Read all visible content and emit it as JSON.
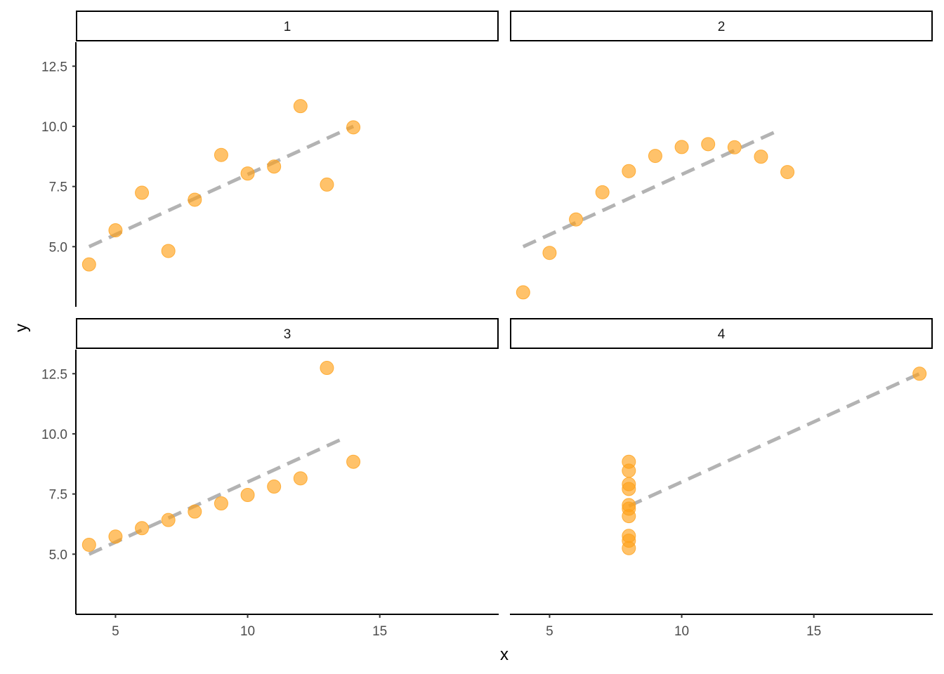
{
  "chart_data": {
    "type": "scatter",
    "facet_layout": "2x2",
    "xlabel": "x",
    "ylabel": "y",
    "xlim": [
      3.5,
      19.5
    ],
    "ylim": [
      2.5,
      13.5
    ],
    "x_ticks": [
      5,
      10,
      15
    ],
    "y_ticks": [
      5.0,
      7.5,
      10.0,
      12.5
    ],
    "x_tick_labels": [
      "5",
      "10",
      "15"
    ],
    "y_tick_labels": [
      "5.0",
      "7.5",
      "10.0",
      "12.5"
    ],
    "grid": false,
    "point_color": "#FFA11A",
    "line_color": "#B3B3B3",
    "line_style": "dashed",
    "trend_line": {
      "intercept": 3.0,
      "slope": 0.5
    },
    "panels": [
      {
        "label": "1",
        "points": [
          {
            "x": 4,
            "y": 4.26
          },
          {
            "x": 5,
            "y": 5.68
          },
          {
            "x": 6,
            "y": 7.24
          },
          {
            "x": 7,
            "y": 4.82
          },
          {
            "x": 8,
            "y": 6.95
          },
          {
            "x": 9,
            "y": 8.81
          },
          {
            "x": 10,
            "y": 8.04
          },
          {
            "x": 11,
            "y": 8.33
          },
          {
            "x": 12,
            "y": 10.84
          },
          {
            "x": 13,
            "y": 7.58
          },
          {
            "x": 14,
            "y": 9.96
          }
        ],
        "line_x": [
          4,
          14
        ]
      },
      {
        "label": "2",
        "points": [
          {
            "x": 4,
            "y": 3.1
          },
          {
            "x": 5,
            "y": 4.74
          },
          {
            "x": 6,
            "y": 6.13
          },
          {
            "x": 7,
            "y": 7.26
          },
          {
            "x": 8,
            "y": 8.14
          },
          {
            "x": 9,
            "y": 8.77
          },
          {
            "x": 10,
            "y": 9.14
          },
          {
            "x": 11,
            "y": 9.26
          },
          {
            "x": 12,
            "y": 9.13
          },
          {
            "x": 13,
            "y": 8.74
          },
          {
            "x": 14,
            "y": 8.1
          }
        ],
        "line_x": [
          4,
          13.6
        ]
      },
      {
        "label": "3",
        "points": [
          {
            "x": 4,
            "y": 5.39
          },
          {
            "x": 5,
            "y": 5.73
          },
          {
            "x": 6,
            "y": 6.08
          },
          {
            "x": 7,
            "y": 6.42
          },
          {
            "x": 8,
            "y": 6.77
          },
          {
            "x": 9,
            "y": 7.11
          },
          {
            "x": 10,
            "y": 7.46
          },
          {
            "x": 11,
            "y": 7.81
          },
          {
            "x": 12,
            "y": 8.15
          },
          {
            "x": 13,
            "y": 12.74
          },
          {
            "x": 14,
            "y": 8.84
          }
        ],
        "line_x": [
          4,
          13.6
        ]
      },
      {
        "label": "4",
        "points": [
          {
            "x": 8,
            "y": 6.58
          },
          {
            "x": 8,
            "y": 5.76
          },
          {
            "x": 8,
            "y": 7.71
          },
          {
            "x": 8,
            "y": 8.84
          },
          {
            "x": 8,
            "y": 8.47
          },
          {
            "x": 8,
            "y": 7.04
          },
          {
            "x": 8,
            "y": 5.25
          },
          {
            "x": 19,
            "y": 12.5
          },
          {
            "x": 8,
            "y": 5.56
          },
          {
            "x": 8,
            "y": 7.91
          },
          {
            "x": 8,
            "y": 6.89
          }
        ],
        "line_x": [
          8,
          19
        ]
      }
    ]
  }
}
